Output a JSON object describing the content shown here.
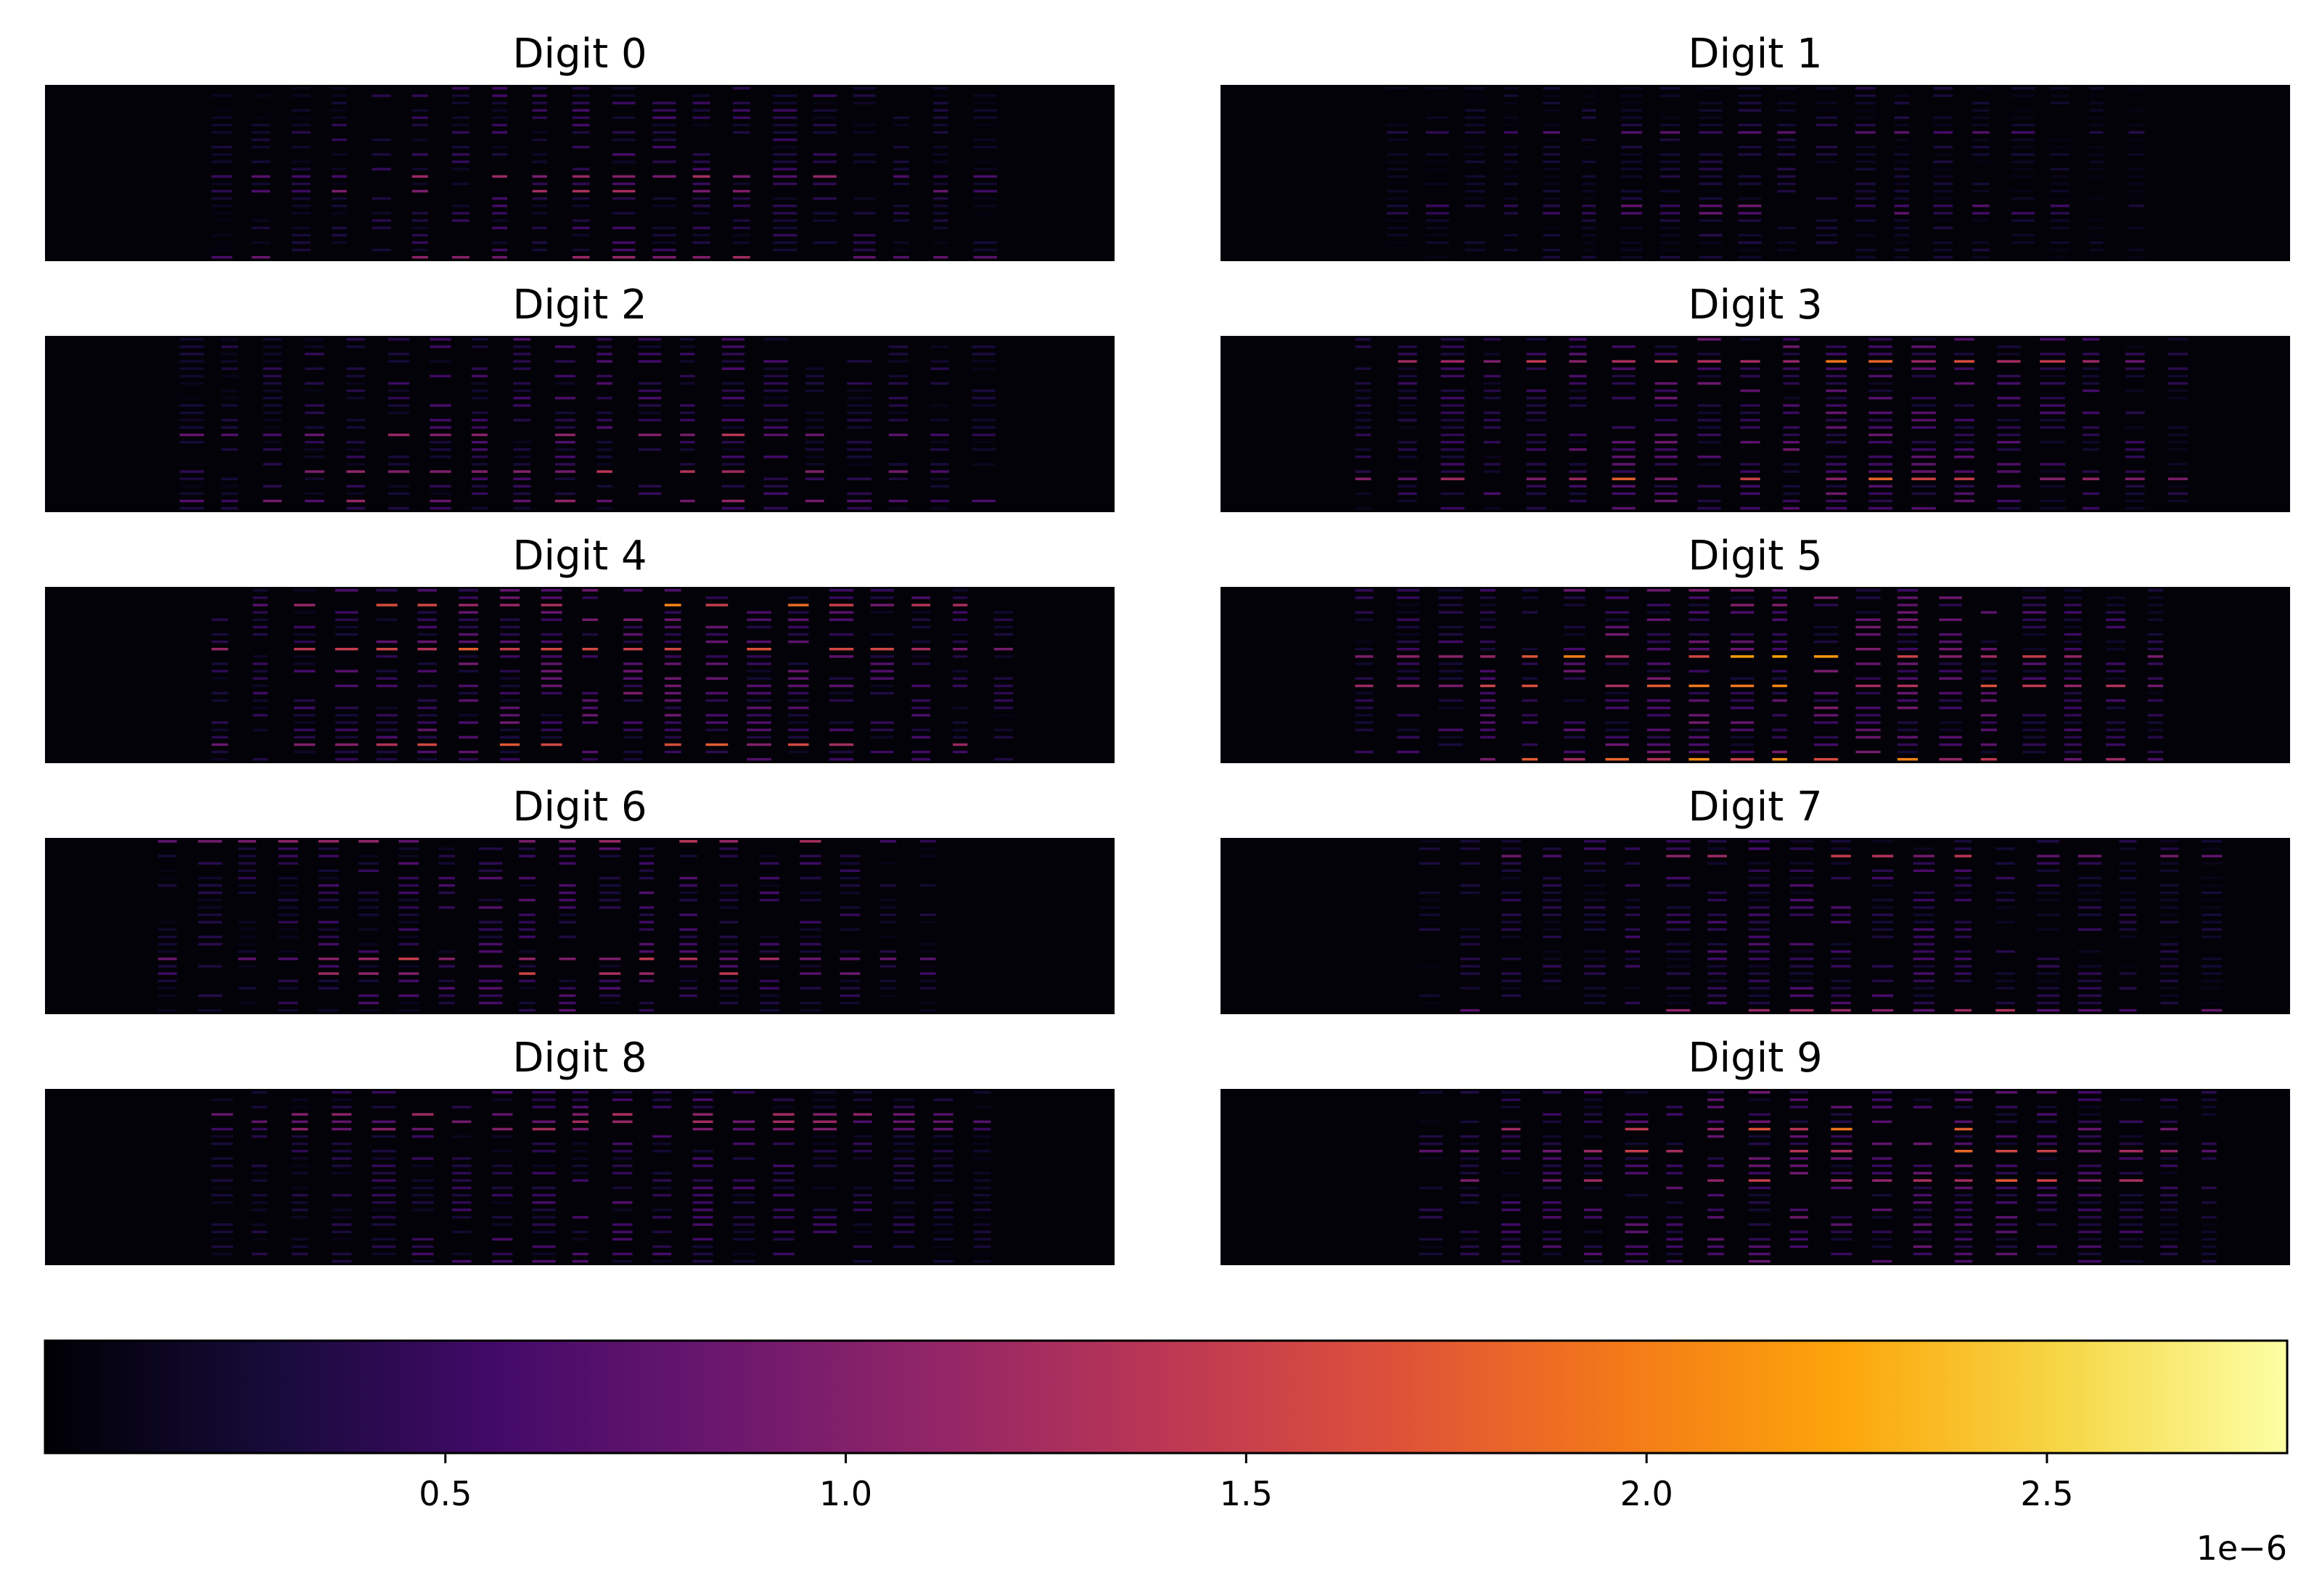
{
  "chart_data": {
    "type": "heatmap",
    "colormap": "inferno",
    "panels": [
      {
        "title": "Digit 0",
        "onset": 0.15,
        "offset": 0.9,
        "intensity": 0.55
      },
      {
        "title": "Digit 1",
        "onset": 0.15,
        "offset": 0.88,
        "intensity": 0.35
      },
      {
        "title": "Digit 2",
        "onset": 0.12,
        "offset": 0.9,
        "intensity": 0.6
      },
      {
        "title": "Digit 3",
        "onset": 0.12,
        "offset": 0.92,
        "intensity": 0.8
      },
      {
        "title": "Digit 4",
        "onset": 0.15,
        "offset": 0.92,
        "intensity": 0.85
      },
      {
        "title": "Digit 5",
        "onset": 0.12,
        "offset": 0.9,
        "intensity": 0.9
      },
      {
        "title": "Digit 6",
        "onset": 0.1,
        "offset": 0.85,
        "intensity": 0.65
      },
      {
        "title": "Digit 7",
        "onset": 0.18,
        "offset": 0.95,
        "intensity": 0.6
      },
      {
        "title": "Digit 8",
        "onset": 0.15,
        "offset": 0.9,
        "intensity": 0.6
      },
      {
        "title": "Digit 9",
        "onset": 0.18,
        "offset": 0.95,
        "intensity": 0.8
      }
    ],
    "colorbar": {
      "orientation": "horizontal",
      "range": [
        0,
        2.8e-06
      ],
      "ticks": [
        0.5,
        1.0,
        1.5,
        2.0,
        2.5
      ],
      "tick_labels": [
        "0.5",
        "1.0",
        "1.5",
        "2.0",
        "2.5"
      ],
      "offset_label": "1e−6"
    }
  }
}
